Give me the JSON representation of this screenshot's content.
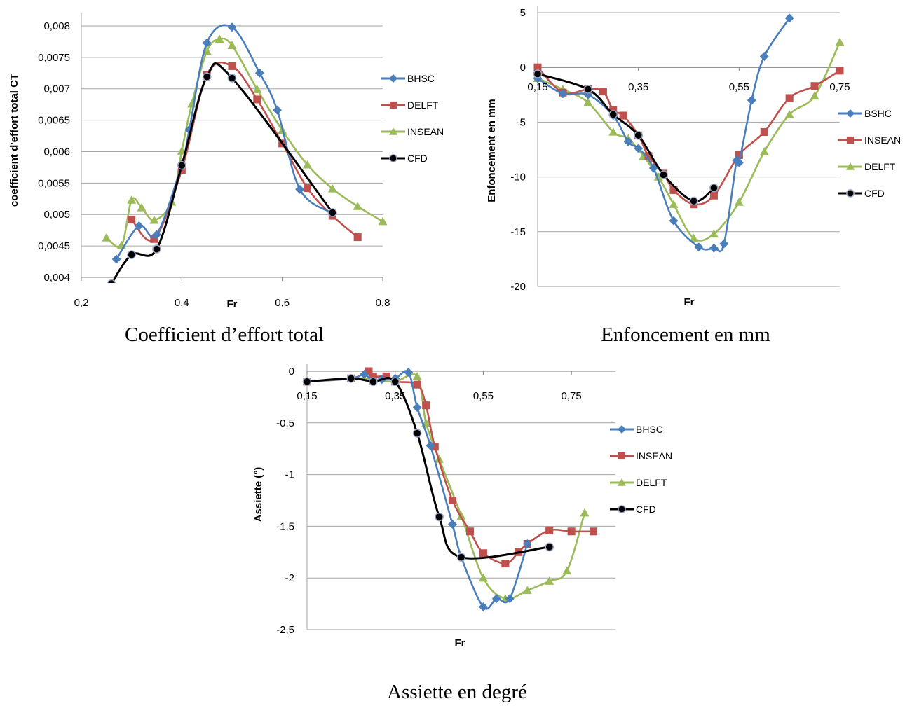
{
  "colors": {
    "blue": "#4a7ebb",
    "red": "#c0504d",
    "green": "#9bbb59",
    "black": "#000000",
    "grid": "#a6a6a6"
  },
  "chart_data": [
    {
      "id": "ct",
      "type": "line",
      "caption": "Coefficient d’effort total",
      "xlabel": "Fr",
      "ylabel": "coefficient d'effort total CT",
      "xlim": [
        0.2,
        0.8
      ],
      "ylim": [
        0.004,
        0.0081
      ],
      "x_ticks": [
        {
          "v": 0.2,
          "label": "0,2"
        },
        {
          "v": 0.4,
          "label": "0,4"
        },
        {
          "v": 0.6,
          "label": "0,6"
        },
        {
          "v": 0.8,
          "label": "0,8"
        }
      ],
      "y_ticks": [
        {
          "v": 0.004,
          "label": "0,004"
        },
        {
          "v": 0.0045,
          "label": "0,0045"
        },
        {
          "v": 0.005,
          "label": "0,005"
        },
        {
          "v": 0.0055,
          "label": "0,0055"
        },
        {
          "v": 0.006,
          "label": "0,006"
        },
        {
          "v": 0.0065,
          "label": "0,0065"
        },
        {
          "v": 0.007,
          "label": "0,007"
        },
        {
          "v": 0.0075,
          "label": "0,0075"
        },
        {
          "v": 0.008,
          "label": "0,008"
        }
      ],
      "grid": "horizontal",
      "legend_position": "right",
      "series": [
        {
          "name": "BHSC",
          "color_key": "blue",
          "marker": "diamond",
          "x": [
            0.27,
            0.315,
            0.35,
            0.4,
            0.415,
            0.45,
            0.5,
            0.555,
            0.59,
            0.635,
            0.7
          ],
          "y": [
            0.00429,
            0.00482,
            0.00468,
            0.0058,
            0.00635,
            0.00773,
            0.00798,
            0.00725,
            0.00666,
            0.0054,
            0.00502
          ]
        },
        {
          "name": "DELFT",
          "color_key": "red",
          "marker": "square",
          "x": [
            0.3,
            0.345,
            0.4,
            0.45,
            0.5,
            0.55,
            0.6,
            0.65,
            0.7,
            0.75
          ],
          "y": [
            0.00492,
            0.00461,
            0.00571,
            0.00722,
            0.00736,
            0.00683,
            0.00613,
            0.00542,
            0.00498,
            0.00464
          ]
        },
        {
          "name": "INSEAN",
          "color_key": "green",
          "marker": "triangle",
          "x": [
            0.25,
            0.28,
            0.3,
            0.32,
            0.345,
            0.38,
            0.4,
            0.42,
            0.45,
            0.475,
            0.5,
            0.55,
            0.6,
            0.65,
            0.7,
            0.75,
            0.8
          ],
          "y": [
            0.00463,
            0.00451,
            0.00523,
            0.00511,
            0.00491,
            0.0052,
            0.00601,
            0.00676,
            0.0076,
            0.00779,
            0.00769,
            0.00699,
            0.00634,
            0.00579,
            0.00541,
            0.00513,
            0.00489
          ]
        },
        {
          "name": "CFD",
          "color_key": "black",
          "marker": "circle",
          "x": [
            0.26,
            0.3,
            0.35,
            0.4,
            0.45,
            0.5,
            0.7
          ],
          "y": [
            0.0039,
            0.00436,
            0.00445,
            0.00578,
            0.00719,
            0.00717,
            0.00503
          ]
        }
      ]
    },
    {
      "id": "enf",
      "type": "line",
      "caption": "Enfoncement en mm",
      "xlabel": "Fr",
      "ylabel": "Enfoncement en mm",
      "xlim": [
        0.15,
        0.75
      ],
      "ylim": [
        -20,
        5
      ],
      "x_ticks": [
        {
          "v": 0.15,
          "label": "0,15"
        },
        {
          "v": 0.35,
          "label": "0,35"
        },
        {
          "v": 0.55,
          "label": "0,55"
        },
        {
          "v": 0.75,
          "label": "0,75"
        }
      ],
      "y_ticks": [
        {
          "v": 5,
          "label": "5"
        },
        {
          "v": 0,
          "label": "0"
        },
        {
          "v": -5,
          "label": "-5"
        },
        {
          "v": -10,
          "label": "-10"
        },
        {
          "v": -15,
          "label": "-15"
        },
        {
          "v": -20,
          "label": "-20"
        }
      ],
      "grid": "horizontal",
      "legend_position": "right",
      "series": [
        {
          "name": "BSHC",
          "color_key": "blue",
          "marker": "diamond",
          "x": [
            0.15,
            0.2,
            0.25,
            0.3,
            0.33,
            0.35,
            0.38,
            0.42,
            0.47,
            0.5,
            0.52,
            0.545,
            0.55,
            0.575,
            0.6,
            0.65
          ],
          "y": [
            -1.0,
            -2.4,
            -2.5,
            -4.4,
            -6.8,
            -7.4,
            -9.2,
            -14.0,
            -16.4,
            -16.5,
            -16.1,
            -8.5,
            -8.7,
            -3.0,
            1.0,
            4.5
          ]
        },
        {
          "name": "INSEAN",
          "color_key": "red",
          "marker": "square",
          "x": [
            0.15,
            0.2,
            0.25,
            0.28,
            0.3,
            0.32,
            0.35,
            0.37,
            0.4,
            0.42,
            0.46,
            0.5,
            0.55,
            0.6,
            0.65,
            0.7,
            0.75
          ],
          "y": [
            0.0,
            -2.3,
            -2.0,
            -2.2,
            -3.9,
            -4.4,
            -6.2,
            -8.1,
            -9.7,
            -11.2,
            -12.5,
            -11.7,
            -8.0,
            -5.9,
            -2.8,
            -1.7,
            -0.3
          ]
        },
        {
          "name": "DELFT",
          "color_key": "green",
          "marker": "triangle",
          "x": [
            0.15,
            0.2,
            0.25,
            0.3,
            0.33,
            0.36,
            0.39,
            0.42,
            0.46,
            0.5,
            0.55,
            0.6,
            0.65,
            0.7,
            0.75
          ],
          "y": [
            -1.0,
            -2.0,
            -3.2,
            -5.9,
            -6.5,
            -8.1,
            -10.0,
            -12.5,
            -15.6,
            -15.2,
            -12.3,
            -7.7,
            -4.3,
            -2.6,
            2.3
          ]
        },
        {
          "name": "CFD",
          "color_key": "black",
          "marker": "circle",
          "x": [
            0.15,
            0.25,
            0.3,
            0.35,
            0.4,
            0.46,
            0.5
          ],
          "y": [
            -0.6,
            -2.0,
            -4.3,
            -6.2,
            -9.8,
            -12.2,
            -11.0
          ]
        }
      ]
    },
    {
      "id": "ass",
      "type": "line",
      "caption": "Assiette en degré",
      "xlabel": "Fr",
      "ylabel": "Assiette (°)",
      "xlim": [
        0.15,
        0.85
      ],
      "ylim": [
        -2.5,
        0
      ],
      "x_ticks": [
        {
          "v": 0.15,
          "label": "0,15"
        },
        {
          "v": 0.35,
          "label": "0,35"
        },
        {
          "v": 0.55,
          "label": "0,55"
        },
        {
          "v": 0.75,
          "label": "0,75"
        }
      ],
      "y_ticks": [
        {
          "v": 0,
          "label": "0"
        },
        {
          "v": -0.5,
          "label": "-0,5"
        },
        {
          "v": -1,
          "label": "-1"
        },
        {
          "v": -1.5,
          "label": "-1,5"
        },
        {
          "v": -2,
          "label": "-2"
        },
        {
          "v": -2.5,
          "label": "-2,5"
        }
      ],
      "grid": "horizontal",
      "legend_position": "right",
      "series": [
        {
          "name": "BHSC",
          "color_key": "blue",
          "marker": "diamond",
          "x": [
            0.15,
            0.25,
            0.28,
            0.3,
            0.32,
            0.35,
            0.38,
            0.4,
            0.43,
            0.48,
            0.5,
            0.55,
            0.58,
            0.61,
            0.65
          ],
          "y": [
            -0.1,
            -0.07,
            -0.03,
            -0.1,
            -0.08,
            -0.07,
            -0.01,
            -0.35,
            -0.72,
            -1.48,
            -1.8,
            -2.28,
            -2.2,
            -2.2,
            -1.67
          ]
        },
        {
          "name": "INSEAN",
          "color_key": "red",
          "marker": "square",
          "x": [
            0.15,
            0.25,
            0.29,
            0.3,
            0.33,
            0.35,
            0.4,
            0.42,
            0.44,
            0.48,
            0.52,
            0.55,
            0.6,
            0.63,
            0.65,
            0.7,
            0.75,
            0.8
          ],
          "y": [
            -0.1,
            -0.07,
            0.0,
            -0.05,
            -0.05,
            -0.1,
            -0.13,
            -0.33,
            -0.73,
            -1.25,
            -1.55,
            -1.76,
            -1.86,
            -1.75,
            -1.67,
            -1.54,
            -1.55,
            -1.55
          ]
        },
        {
          "name": "DELFT",
          "color_key": "green",
          "marker": "triangle",
          "x": [
            0.15,
            0.25,
            0.3,
            0.35,
            0.4,
            0.42,
            0.45,
            0.5,
            0.55,
            0.6,
            0.65,
            0.7,
            0.74,
            0.78
          ],
          "y": [
            -0.1,
            -0.07,
            -0.08,
            -0.1,
            -0.05,
            -0.5,
            -0.85,
            -1.4,
            -2.0,
            -2.2,
            -2.12,
            -2.03,
            -1.93,
            -1.37
          ]
        },
        {
          "name": "CFD",
          "color_key": "black",
          "marker": "circle",
          "x": [
            0.15,
            0.25,
            0.3,
            0.35,
            0.4,
            0.45,
            0.5,
            0.7
          ],
          "y": [
            -0.1,
            -0.07,
            -0.1,
            -0.1,
            -0.6,
            -1.41,
            -1.8,
            -1.7
          ]
        }
      ]
    }
  ]
}
